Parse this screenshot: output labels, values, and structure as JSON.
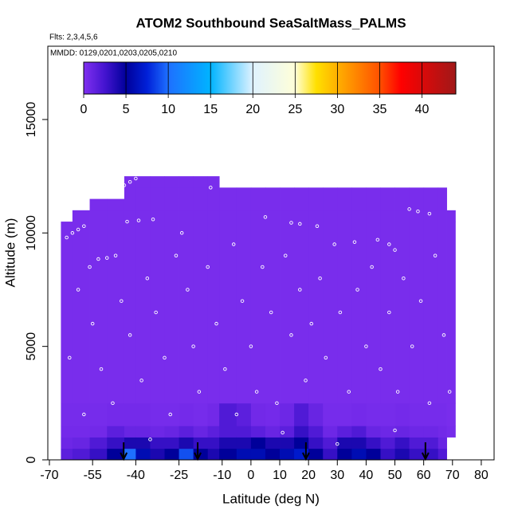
{
  "chart_data": {
    "type": "heatmap",
    "title": "ATOM2 Southbound SeaSaltMass_PALMS",
    "subtitle": "Flts: 2,3,4,5,6",
    "annotation": "MMDD: 0129,0201,0203,0205,0210",
    "x_label": "Latitude (deg N)",
    "y_label": "Altitude (m)",
    "xlim": [
      -70.55,
      84.45
    ],
    "ylim": [
      0,
      18230
    ],
    "xticks": [
      -70,
      -55,
      -40,
      -25,
      -10,
      0,
      10,
      20,
      30,
      40,
      50,
      60,
      70,
      80
    ],
    "yticks": [
      0,
      5000,
      10000,
      15000
    ],
    "x_edges": [
      -66,
      -62,
      -56,
      -50,
      -44,
      -40,
      -35,
      -30,
      -25,
      -20,
      -15,
      -11,
      -5,
      0,
      5,
      10,
      15,
      20,
      25,
      30,
      35,
      40,
      45,
      50,
      55,
      60,
      65,
      68,
      71
    ],
    "y_edges": [
      0,
      500,
      1000,
      1500,
      2500,
      10500,
      11000,
      11500,
      12000,
      12500
    ],
    "z": [
      [
        1.5,
        0.8,
        0.5,
        0.4,
        0.3,
        null,
        null,
        null,
        null
      ],
      [
        2,
        1,
        0.5,
        0.4,
        0.3,
        0.3,
        null,
        null,
        null
      ],
      [
        3,
        2,
        0.6,
        0.4,
        0.3,
        0.3,
        0.3,
        null,
        null
      ],
      [
        5,
        3,
        1.5,
        0.5,
        0.3,
        0.3,
        0.3,
        null,
        null
      ],
      [
        10,
        4,
        1,
        0.5,
        0.3,
        0.3,
        0.3,
        0.3,
        0.3
      ],
      [
        6,
        4,
        1,
        0.5,
        0.3,
        0.3,
        0.3,
        0.3,
        0.3
      ],
      [
        4,
        3,
        0.8,
        0.4,
        0.3,
        0.3,
        0.3,
        0.3,
        0.3
      ],
      [
        5,
        3,
        1,
        0.4,
        0.3,
        0.3,
        0.3,
        0.3,
        0.3
      ],
      [
        9,
        4,
        1.5,
        0.5,
        0.3,
        0.3,
        0.3,
        0.3,
        0.3
      ],
      [
        5,
        3,
        1,
        0.4,
        0.3,
        0.3,
        0.3,
        0.3,
        0.3
      ],
      [
        4,
        3,
        1.5,
        0.6,
        0.3,
        0.3,
        0.3,
        0.3,
        0.3
      ],
      [
        5,
        4,
        2,
        2,
        0.3,
        0.3,
        0.3,
        0.3,
        null
      ],
      [
        6,
        4,
        2,
        1.5,
        0.3,
        0.3,
        0.3,
        0.3,
        null
      ],
      [
        6,
        5,
        1.5,
        0.6,
        0.3,
        0.3,
        0.3,
        0.3,
        null
      ],
      [
        5,
        4,
        1,
        0.5,
        0.3,
        0.3,
        0.3,
        0.3,
        null
      ],
      [
        6,
        4,
        1.5,
        0.8,
        0.3,
        0.3,
        0.3,
        0.3,
        null
      ],
      [
        7,
        5,
        3,
        2,
        0.3,
        0.3,
        0.3,
        0.3,
        null
      ],
      [
        5,
        3,
        2,
        1,
        0.3,
        0.3,
        0.3,
        0.3,
        null
      ],
      [
        3,
        2,
        0.8,
        0.4,
        0.3,
        0.3,
        0.3,
        0.3,
        null
      ],
      [
        5,
        4,
        1.5,
        0.4,
        0.3,
        0.3,
        0.3,
        0.3,
        null
      ],
      [
        6,
        4,
        2,
        0.5,
        0.3,
        0.3,
        0.3,
        0.3,
        null
      ],
      [
        5,
        3,
        1,
        0.4,
        0.3,
        0.3,
        0.3,
        0.3,
        null
      ],
      [
        3,
        2,
        0.8,
        0.4,
        0.3,
        0.3,
        0.3,
        0.3,
        null
      ],
      [
        4,
        3,
        1,
        0.5,
        0.3,
        0.3,
        0.3,
        0.3,
        null
      ],
      [
        3,
        2,
        0.8,
        0.4,
        0.3,
        0.3,
        0.3,
        0.3,
        null
      ],
      [
        3,
        2,
        0.8,
        0.4,
        0.3,
        0.3,
        0.3,
        0.3,
        null
      ],
      [
        2,
        1,
        0.6,
        0.4,
        0.3,
        0.3,
        0.3,
        0.3,
        null
      ],
      [
        null,
        null,
        0.4,
        0.3,
        0.3,
        0.3,
        null,
        null,
        null
      ]
    ],
    "points": [
      [
        -64,
        9800
      ],
      [
        -62,
        10000
      ],
      [
        -60,
        10150
      ],
      [
        -58,
        10300
      ],
      [
        -53,
        8850
      ],
      [
        -50,
        8900
      ],
      [
        -47,
        9000
      ],
      [
        -44,
        12100
      ],
      [
        -42,
        12250
      ],
      [
        -40,
        12400
      ],
      [
        -43,
        10500
      ],
      [
        -39,
        10550
      ],
      [
        -34,
        10600
      ],
      [
        -24,
        10000
      ],
      [
        -14,
        12000
      ],
      [
        5,
        10700
      ],
      [
        14,
        10450
      ],
      [
        17,
        10400
      ],
      [
        23,
        10300
      ],
      [
        36,
        9600
      ],
      [
        44,
        9700
      ],
      [
        48,
        9500
      ],
      [
        50,
        9250
      ],
      [
        55,
        11050
      ],
      [
        58,
        10950
      ],
      [
        62,
        10850
      ],
      [
        -60,
        7500
      ],
      [
        -55,
        6000
      ],
      [
        -52,
        4000
      ],
      [
        -48,
        2500
      ],
      [
        -45,
        7000
      ],
      [
        -42,
        5500
      ],
      [
        -38,
        3500
      ],
      [
        -36,
        8000
      ],
      [
        -33,
        6500
      ],
      [
        -30,
        4500
      ],
      [
        -28,
        2000
      ],
      [
        -26,
        9000
      ],
      [
        -22,
        7500
      ],
      [
        -20,
        5000
      ],
      [
        -18,
        3000
      ],
      [
        -15,
        8500
      ],
      [
        -12,
        6000
      ],
      [
        -9,
        4000
      ],
      [
        -6,
        9500
      ],
      [
        -3,
        7000
      ],
      [
        0,
        5000
      ],
      [
        2,
        3000
      ],
      [
        4,
        8500
      ],
      [
        7,
        6500
      ],
      [
        9,
        2500
      ],
      [
        12,
        9000
      ],
      [
        14,
        5500
      ],
      [
        17,
        7500
      ],
      [
        19,
        3500
      ],
      [
        21,
        6000
      ],
      [
        24,
        8000
      ],
      [
        26,
        4500
      ],
      [
        29,
        9500
      ],
      [
        31,
        6500
      ],
      [
        34,
        3000
      ],
      [
        37,
        7500
      ],
      [
        40,
        5000
      ],
      [
        42,
        8500
      ],
      [
        45,
        4000
      ],
      [
        48,
        6500
      ],
      [
        51,
        3000
      ],
      [
        53,
        8000
      ],
      [
        56,
        5000
      ],
      [
        59,
        7000
      ],
      [
        62,
        2500
      ],
      [
        64,
        9000
      ],
      [
        67,
        5500
      ],
      [
        69,
        3000
      ],
      [
        -63,
        4500
      ],
      [
        -58,
        2000
      ],
      [
        -56,
        8500
      ],
      [
        11,
        1200
      ],
      [
        -35,
        900
      ],
      [
        30,
        700
      ],
      [
        50,
        1300
      ],
      [
        -5,
        2000
      ]
    ],
    "arrows": [
      -44.2,
      -18.5,
      19.1,
      60.6
    ],
    "colorbar_lim": [
      0,
      44
    ],
    "colorbar_ticks": [
      0,
      5,
      10,
      15,
      20,
      25,
      30,
      35,
      40
    ],
    "colormap": [
      [
        0,
        "#8030f0"
      ],
      [
        2.5,
        "#4414d0"
      ],
      [
        5,
        "#00009a"
      ],
      [
        7.5,
        "#0020d8"
      ],
      [
        10,
        "#1e70ff"
      ],
      [
        15,
        "#00b4ff"
      ],
      [
        20,
        "#dff2ff"
      ],
      [
        25,
        "#ffffd8"
      ],
      [
        27.5,
        "#ffe000"
      ],
      [
        30,
        "#ffb000"
      ],
      [
        35,
        "#ff5000"
      ],
      [
        37.5,
        "#ff0000"
      ],
      [
        44,
        "#a01818"
      ]
    ]
  }
}
